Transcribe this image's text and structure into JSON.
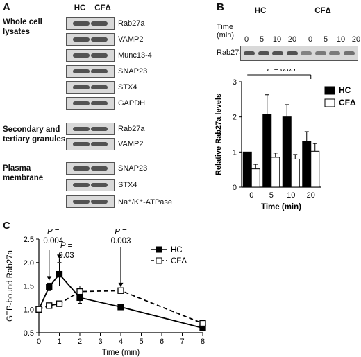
{
  "panel_a": {
    "label": "A",
    "columns": [
      "HC",
      "CFΔ"
    ],
    "sections": [
      {
        "title_lines": [
          "Whole cell",
          "lysates"
        ],
        "proteins": [
          "Rab27a",
          "VAMP2",
          "Munc13-4",
          "SNAP23",
          "STX4",
          "GAPDH"
        ]
      },
      {
        "title_lines": [
          "Secondary and",
          "tertiary granules"
        ],
        "proteins": [
          "Rab27a",
          "VAMP2"
        ]
      },
      {
        "title_lines": [
          "Plasma",
          "membrane"
        ],
        "proteins": [
          "SNAP23",
          "STX4",
          "Na⁺/K⁺-ATPase"
        ]
      }
    ]
  },
  "panel_b": {
    "label": "B",
    "groups": [
      "HC",
      "CFΔ"
    ],
    "time_label_lines": [
      "Time",
      "(min)"
    ],
    "blot_label": "Rab27a",
    "times": [
      "0",
      "5",
      "10",
      "20",
      "0",
      "5",
      "10",
      "20"
    ]
  },
  "panel_c": {
    "label": "C"
  },
  "chart_data": [
    {
      "type": "bar",
      "categories": [
        "0",
        "5",
        "10",
        "20"
      ],
      "series": [
        {
          "name": "HC",
          "values": [
            1.0,
            2.08,
            2.0,
            1.3
          ],
          "errors": [
            0,
            0.55,
            0.35,
            0.28
          ],
          "color": "#000000"
        },
        {
          "name": "CFΔ",
          "values": [
            0.52,
            0.85,
            0.8,
            1.02
          ],
          "errors": [
            0.13,
            0.12,
            0.13,
            0.22
          ],
          "color": "#ffffff"
        }
      ],
      "xlabel": "Time (min)",
      "ylabel": "Relative Rab27a levels",
      "ylim": [
        0,
        3
      ],
      "yticks": [
        0,
        1,
        2,
        3
      ],
      "annotation": "P = 0.05",
      "legend": "top-right"
    },
    {
      "type": "line",
      "series": [
        {
          "name": "HC",
          "x": [
            0,
            0.5,
            1,
            2,
            4,
            8
          ],
          "y": [
            1.0,
            1.48,
            1.75,
            1.25,
            1.05,
            0.6
          ],
          "errors": [
            0,
            0.08,
            0.25,
            0.12,
            0.04,
            0.03
          ],
          "marker": "filled-square",
          "line": "solid"
        },
        {
          "name": "CFΔ",
          "x": [
            0,
            0.5,
            1,
            2,
            4,
            8
          ],
          "y": [
            1.0,
            1.08,
            1.12,
            1.38,
            1.4,
            0.7
          ],
          "errors": [
            0,
            0.03,
            0.04,
            0.12,
            0.03,
            0.03
          ],
          "marker": "open-square",
          "line": "dashed"
        }
      ],
      "xlabel": "Time (min)",
      "ylabel": "GTP-bound Rab27a",
      "xlim": [
        0,
        8
      ],
      "xticks": [
        0,
        1,
        2,
        3,
        4,
        5,
        6,
        7,
        8
      ],
      "ylim": [
        0.5,
        2.5
      ],
      "yticks": [
        0.5,
        1.0,
        1.5,
        2.0,
        2.5
      ],
      "annotations": [
        {
          "lines": [
            "P =",
            "0.004"
          ],
          "x": 0.5
        },
        {
          "lines": [
            "P =",
            "0.03"
          ],
          "x": 1
        },
        {
          "lines": [
            "P =",
            "0.003"
          ],
          "x": 4
        }
      ],
      "legend": "top-right"
    }
  ]
}
